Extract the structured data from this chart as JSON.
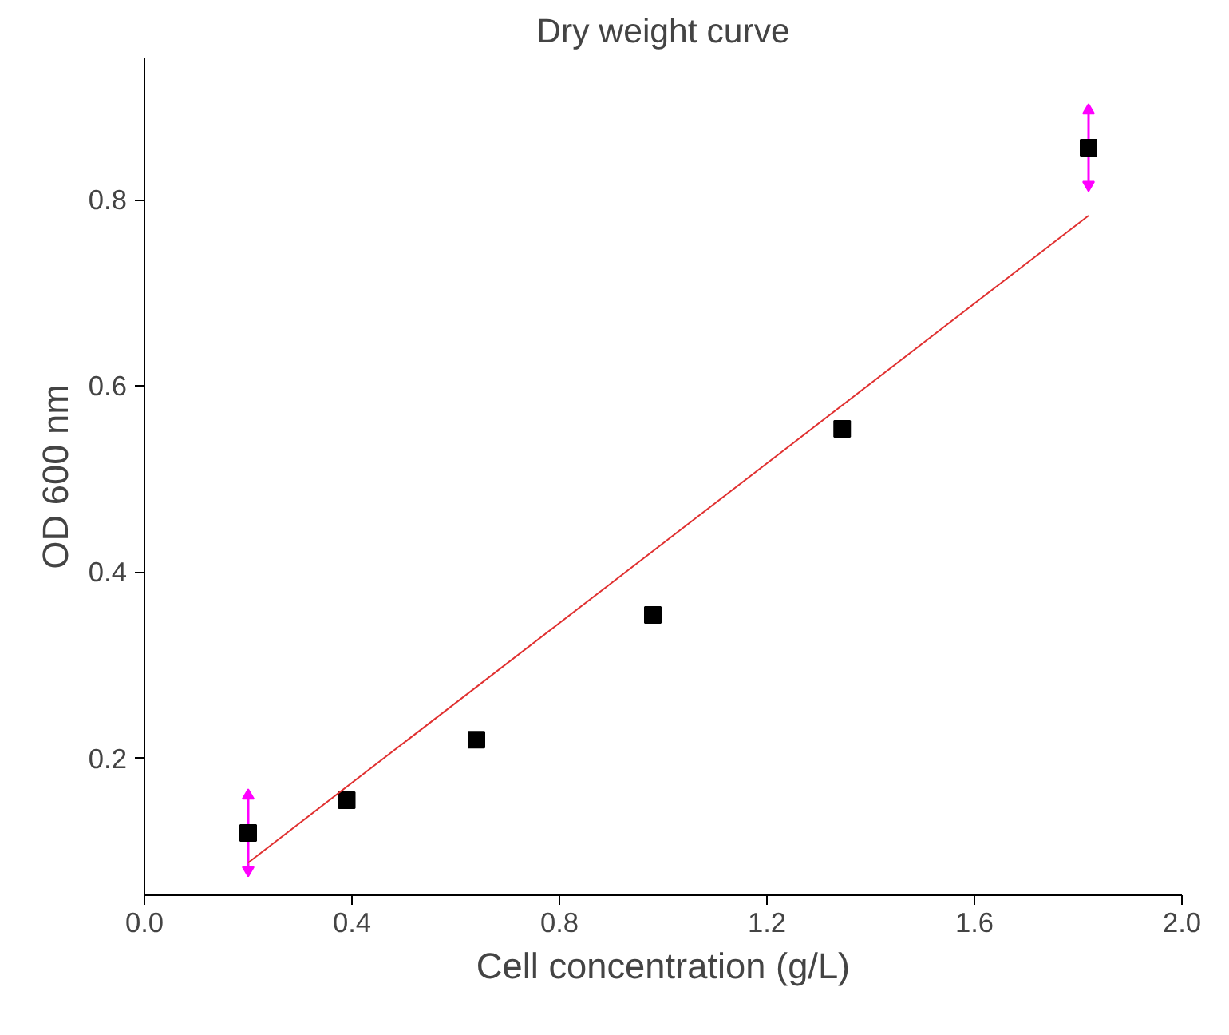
{
  "chart_data": {
    "type": "scatter",
    "title": "Dry weight curve",
    "xlabel": "Cell concentration (g/L)",
    "ylabel": "OD 600 nm",
    "series": [
      {
        "color": "#000000",
        "x": [
          0.2,
          0.39,
          0.64,
          0.98,
          1.345,
          1.82
        ],
        "values": [
          0.12,
          0.155,
          0.22,
          0.354,
          0.554,
          0.856
        ],
        "errors": [
          0.04,
          null,
          null,
          null,
          null,
          0.04
        ],
        "marker": "square"
      },
      {
        "type": "line",
        "color": "#e03030",
        "x": [
          0.2,
          1.82
        ],
        "values": [
          0.088,
          0.783
        ],
        "marker": "none",
        "line_style": "solid"
      }
    ],
    "xlim": [
      0,
      2.0
    ],
    "ylim": [
      0.053,
      0.952
    ],
    "xticks": [
      {
        "value": 0,
        "label": "0.0"
      },
      0.4,
      0.8,
      1.2,
      1.6,
      {
        "value": 2.0,
        "label": "2.0"
      }
    ],
    "yticks": [
      0.2,
      0.4,
      0.6,
      0.8
    ],
    "grid": false
  }
}
